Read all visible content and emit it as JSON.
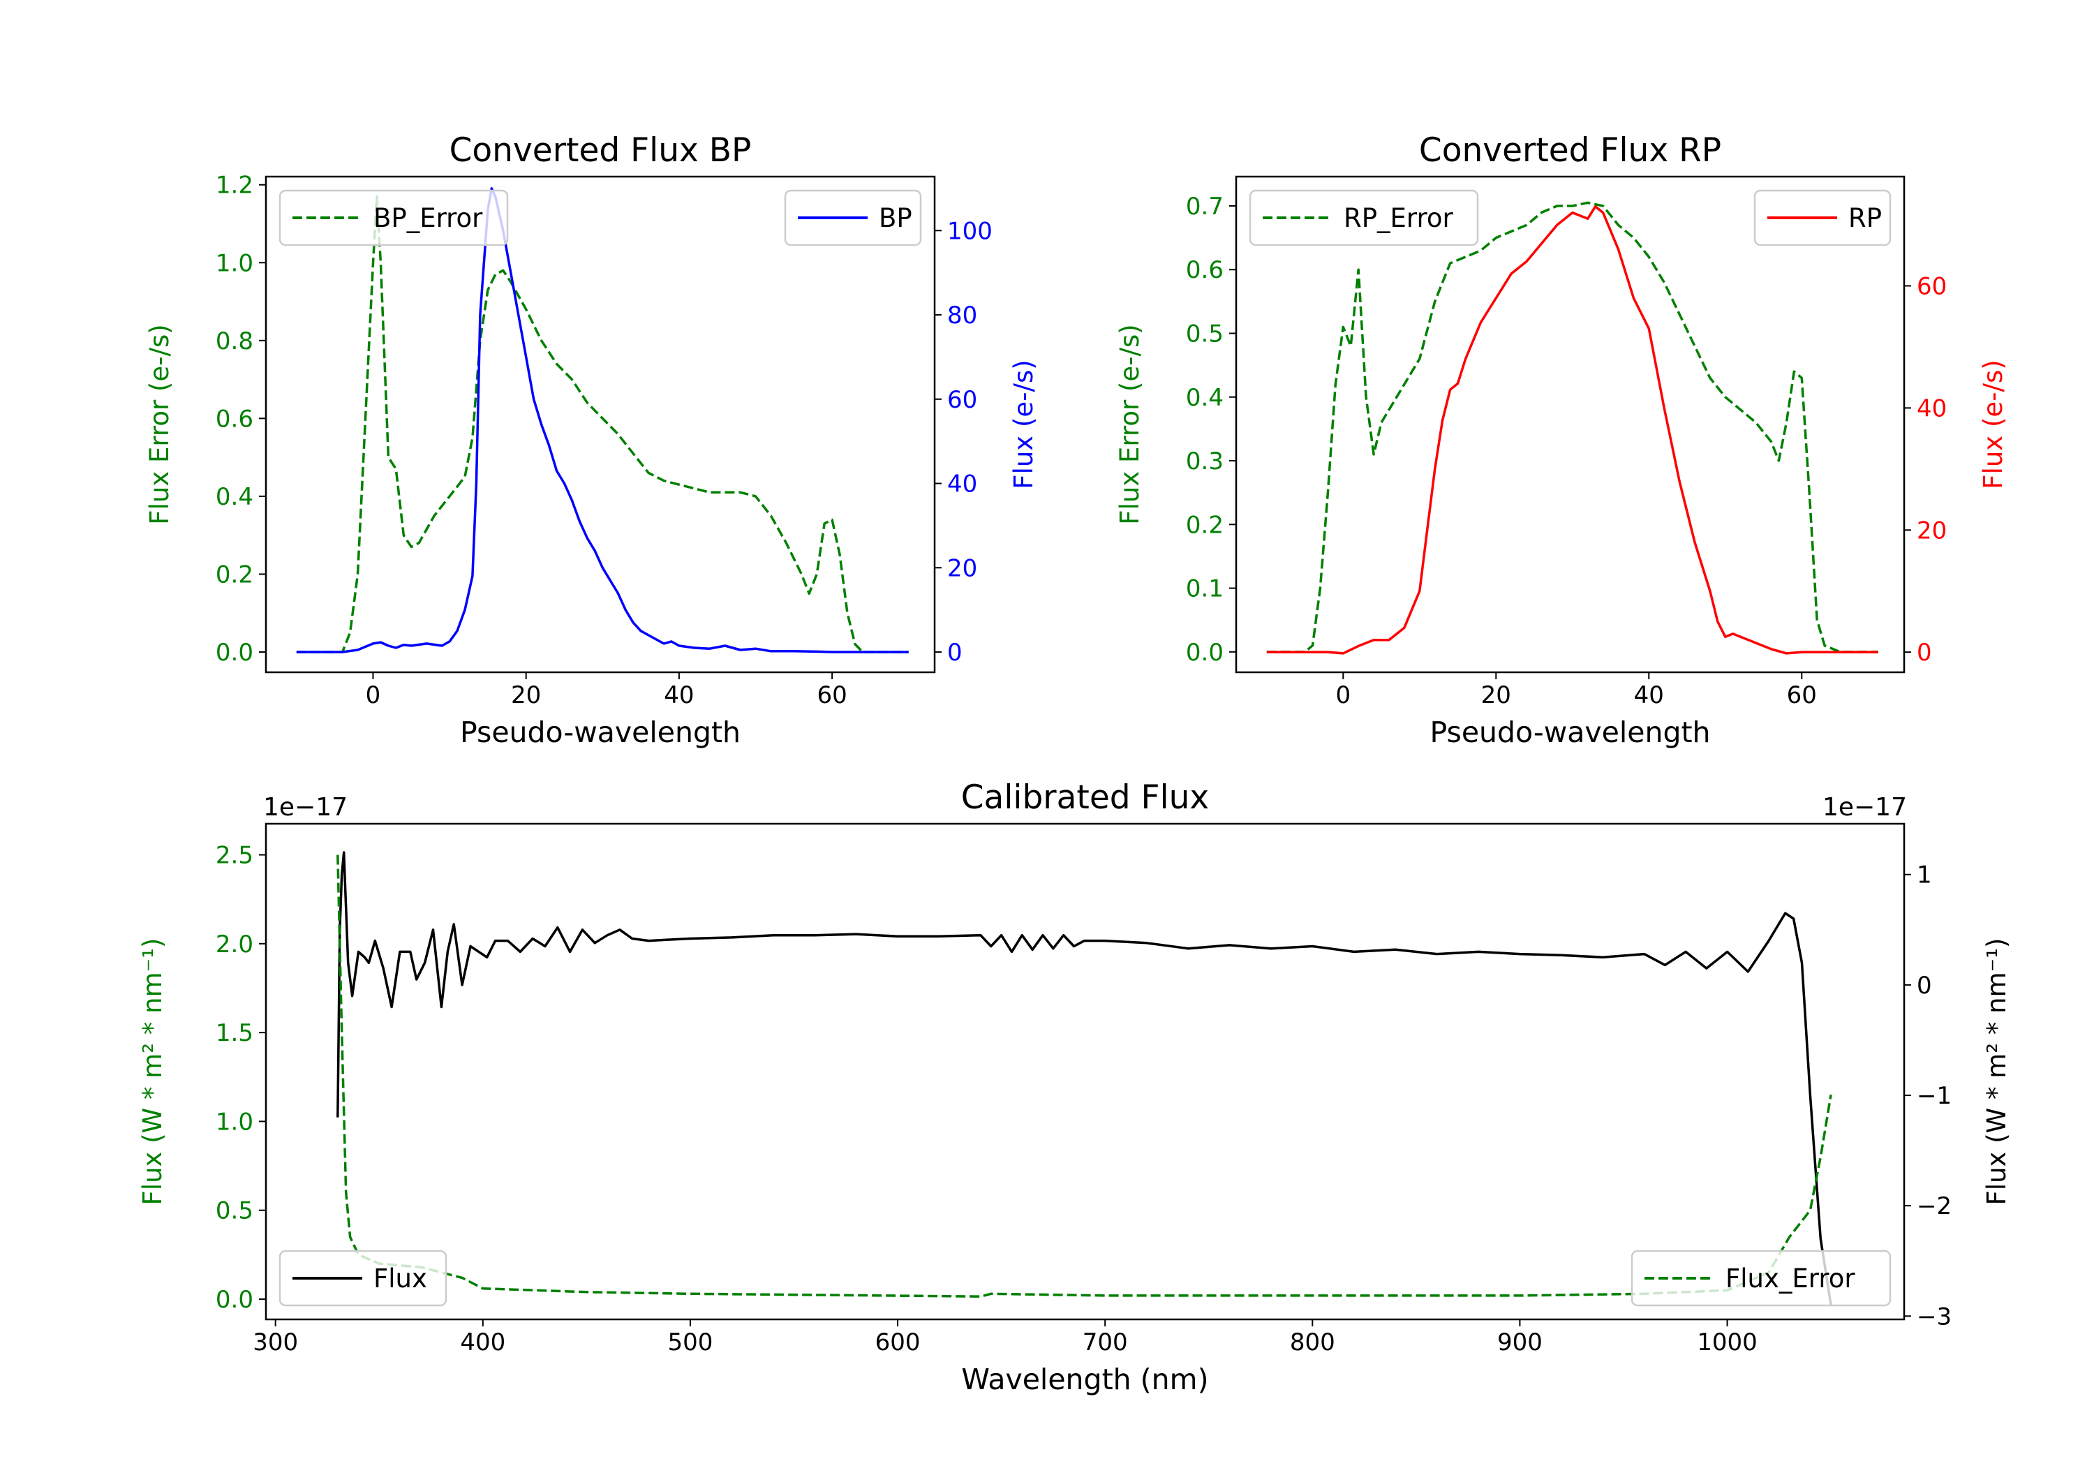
{
  "chart_data": [
    {
      "type": "line",
      "title": "Converted Flux BP",
      "xlabel": "Pseudo-wavelength",
      "xlim": [
        -14,
        73.4
      ],
      "xticks": [
        0,
        20,
        40,
        60
      ],
      "left_axis": {
        "label": "Flux Error (e-/s)",
        "color": "#008000",
        "ylim": [
          -0.052,
          1.221
        ],
        "ticks": [
          "0.0",
          "0.2",
          "0.4",
          "0.6",
          "0.8",
          "1.0",
          "1.2"
        ]
      },
      "right_axis": {
        "label": "Flux (e-/s)",
        "color": "#0000ff",
        "ylim": [
          -4.8,
          112.8
        ],
        "ticks": [
          "0",
          "20",
          "40",
          "60",
          "80",
          "100"
        ]
      },
      "series": [
        {
          "name": "BP_Error",
          "axis": "left",
          "color": "#008000",
          "style": "dashed",
          "legend": "upper left",
          "x": [
            -10,
            -4,
            -3,
            -2,
            -1,
            0,
            0.5,
            1,
            2,
            3,
            4,
            5,
            6,
            8,
            10,
            12,
            13,
            14,
            15,
            16,
            17,
            18,
            20,
            22,
            24,
            26,
            28,
            30,
            32,
            34,
            36,
            38,
            40,
            42,
            44,
            46,
            48,
            50,
            52,
            54,
            56,
            57,
            58,
            59,
            60,
            61,
            62,
            63,
            64,
            70
          ],
          "y": [
            0,
            0,
            0.05,
            0.2,
            0.6,
            1.0,
            1.17,
            1.0,
            0.5,
            0.47,
            0.3,
            0.27,
            0.28,
            0.35,
            0.4,
            0.45,
            0.55,
            0.8,
            0.93,
            0.97,
            0.98,
            0.95,
            0.88,
            0.8,
            0.74,
            0.7,
            0.64,
            0.6,
            0.56,
            0.51,
            0.46,
            0.44,
            0.43,
            0.42,
            0.41,
            0.41,
            0.41,
            0.4,
            0.35,
            0.28,
            0.2,
            0.15,
            0.2,
            0.33,
            0.34,
            0.25,
            0.1,
            0.02,
            0,
            0
          ]
        },
        {
          "name": "BP",
          "axis": "right",
          "color": "#0000ff",
          "style": "solid",
          "legend": "upper right",
          "x": [
            -10,
            -4,
            -2,
            0,
            1,
            2,
            3,
            4,
            5,
            7,
            9,
            10,
            11,
            12,
            13,
            13.5,
            14,
            15,
            15.5,
            16,
            17,
            18,
            19,
            20,
            21,
            22,
            23,
            24,
            25,
            26,
            27,
            28,
            29,
            30,
            31,
            32,
            33,
            34,
            35,
            36,
            37,
            38,
            39,
            40,
            42,
            44,
            46,
            48,
            50,
            52,
            55,
            58,
            60,
            70
          ],
          "y": [
            0,
            0,
            0.5,
            2,
            2.3,
            1.5,
            1,
            1.7,
            1.5,
            2,
            1.5,
            2.5,
            5,
            10,
            18,
            40,
            80,
            105,
            110,
            108,
            100,
            90,
            80,
            70,
            60,
            54,
            49,
            43,
            40,
            36,
            31,
            27,
            24,
            20,
            17,
            14,
            10,
            7,
            5,
            4,
            3,
            2,
            2.5,
            1.5,
            1,
            0.8,
            1.5,
            0.5,
            0.8,
            0.2,
            0.2,
            0.1,
            0,
            0
          ]
        }
      ]
    },
    {
      "type": "line",
      "title": "Converted Flux RP",
      "xlabel": "Pseudo-wavelength",
      "xlim": [
        -14,
        73.4
      ],
      "xticks": [
        0,
        20,
        40,
        60
      ],
      "left_axis": {
        "label": "Flux Error (e-/s)",
        "color": "#008000",
        "ylim": [
          -0.032,
          0.746
        ],
        "ticks": [
          "0.0",
          "0.1",
          "0.2",
          "0.3",
          "0.4",
          "0.5",
          "0.6",
          "0.7"
        ]
      },
      "right_axis": {
        "label": "Flux (e-/s)",
        "color": "#ff0000",
        "ylim": [
          -3.3,
          77.9
        ],
        "ticks": [
          "0",
          "20",
          "40",
          "60"
        ]
      },
      "series": [
        {
          "name": "RP_Error",
          "axis": "left",
          "color": "#008000",
          "style": "dashed",
          "legend": "upper left",
          "x": [
            -10,
            -5,
            -4,
            -3,
            -2,
            -1,
            0,
            1,
            2,
            3,
            4,
            5,
            6,
            8,
            10,
            12,
            14,
            16,
            18,
            20,
            22,
            24,
            26,
            28,
            30,
            32,
            34,
            36,
            38,
            40,
            42,
            44,
            46,
            48,
            50,
            52,
            54,
            56,
            57,
            58,
            59,
            60,
            61,
            62,
            63,
            65,
            70
          ],
          "y": [
            0,
            0,
            0.01,
            0.1,
            0.25,
            0.42,
            0.51,
            0.48,
            0.6,
            0.4,
            0.31,
            0.36,
            0.38,
            0.42,
            0.46,
            0.55,
            0.61,
            0.62,
            0.63,
            0.65,
            0.66,
            0.67,
            0.69,
            0.7,
            0.7,
            0.705,
            0.7,
            0.67,
            0.65,
            0.62,
            0.58,
            0.53,
            0.48,
            0.43,
            0.4,
            0.38,
            0.36,
            0.33,
            0.3,
            0.36,
            0.44,
            0.43,
            0.25,
            0.05,
            0.01,
            0,
            0
          ]
        },
        {
          "name": "RP",
          "axis": "right",
          "color": "#ff0000",
          "style": "solid",
          "legend": "upper right",
          "x": [
            -10,
            -2,
            0,
            2,
            4,
            6,
            8,
            10,
            11,
            12,
            13,
            14,
            15,
            16,
            17,
            18,
            19,
            20,
            22,
            24,
            26,
            28,
            30,
            32,
            33,
            34,
            36,
            38,
            40,
            42,
            44,
            46,
            48,
            49,
            50,
            51,
            52,
            54,
            56,
            58,
            60,
            70
          ],
          "y": [
            0,
            0,
            -0.2,
            1,
            2,
            2,
            4,
            10,
            20,
            30,
            38,
            43,
            44,
            48,
            51,
            54,
            56,
            58,
            62,
            64,
            67,
            70,
            72,
            71,
            73,
            72,
            66,
            58,
            53,
            40,
            28,
            18,
            10,
            5,
            2.5,
            3,
            2.5,
            1.5,
            0.5,
            -0.2,
            0,
            0
          ]
        }
      ]
    },
    {
      "type": "line",
      "title": "Calibrated Flux",
      "xlabel": "Wavelength (nm)",
      "xlim": [
        295.4,
        1085.3
      ],
      "xticks": [
        300,
        400,
        500,
        600,
        700,
        800,
        900,
        1000
      ],
      "left_axis": {
        "label": "Flux (W * m² * nm⁻¹)",
        "color": "#008000",
        "ylim": [
          -0.114,
          2.675
        ],
        "ticks": [
          "0.0",
          "0.5",
          "1.0",
          "1.5",
          "2.0",
          "2.5"
        ],
        "offset": "1e−17"
      },
      "right_axis": {
        "label": "Flux (W * m² * nm⁻¹)",
        "color": "#000000",
        "ylim": [
          -3.03,
          1.46
        ],
        "ticks": [
          "−3",
          "−2",
          "−1",
          "0",
          "1"
        ],
        "offset": "1e−17"
      },
      "series": [
        {
          "name": "Flux",
          "axis": "right",
          "color": "#000000",
          "style": "solid",
          "legend": "lower left",
          "x": [
            330,
            331,
            332,
            333,
            335,
            337,
            340,
            343,
            345,
            348,
            352,
            356,
            360,
            365,
            368,
            372,
            376,
            380,
            383,
            386,
            390,
            394,
            398,
            402,
            406,
            412,
            418,
            424,
            430,
            436,
            442,
            448,
            454,
            460,
            466,
            472,
            480,
            490,
            500,
            520,
            540,
            560,
            580,
            600,
            620,
            640,
            645,
            650,
            655,
            660,
            665,
            670,
            675,
            680,
            685,
            690,
            700,
            720,
            740,
            760,
            780,
            800,
            820,
            840,
            860,
            880,
            900,
            920,
            940,
            960,
            970,
            980,
            990,
            1000,
            1010,
            1020,
            1028,
            1032,
            1036,
            1040,
            1045,
            1050
          ],
          "y": [
            -1.2,
            0.5,
            1.0,
            1.2,
            0.2,
            -0.1,
            0.3,
            0.25,
            0.2,
            0.4,
            0.15,
            -0.2,
            0.3,
            0.3,
            0.05,
            0.2,
            0.5,
            -0.2,
            0.3,
            0.55,
            0.0,
            0.35,
            0.3,
            0.25,
            0.4,
            0.4,
            0.3,
            0.42,
            0.35,
            0.52,
            0.3,
            0.5,
            0.38,
            0.45,
            0.5,
            0.42,
            0.4,
            0.41,
            0.42,
            0.43,
            0.45,
            0.45,
            0.46,
            0.44,
            0.44,
            0.45,
            0.35,
            0.45,
            0.3,
            0.45,
            0.32,
            0.45,
            0.33,
            0.45,
            0.35,
            0.4,
            0.4,
            0.38,
            0.33,
            0.36,
            0.33,
            0.35,
            0.3,
            0.32,
            0.28,
            0.3,
            0.28,
            0.27,
            0.25,
            0.28,
            0.18,
            0.3,
            0.15,
            0.3,
            0.12,
            0.4,
            0.65,
            0.6,
            0.2,
            -1.0,
            -2.3,
            -2.9
          ]
        },
        {
          "name": "Flux_Error",
          "axis": "left",
          "color": "#008000",
          "style": "dashed",
          "legend": "lower right",
          "x": [
            330,
            332,
            334,
            336,
            340,
            350,
            370,
            390,
            400,
            450,
            500,
            640,
            645,
            700,
            900,
            960,
            1000,
            1020,
            1030,
            1040,
            1045,
            1050
          ],
          "y": [
            2.5,
            1.5,
            0.6,
            0.35,
            0.25,
            0.2,
            0.18,
            0.12,
            0.06,
            0.04,
            0.03,
            0.015,
            0.03,
            0.02,
            0.02,
            0.03,
            0.05,
            0.15,
            0.35,
            0.5,
            0.8,
            1.15
          ]
        }
      ]
    }
  ]
}
